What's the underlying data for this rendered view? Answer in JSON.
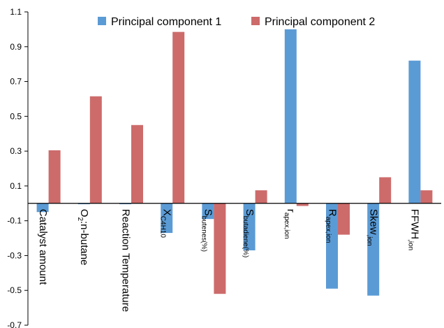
{
  "chart_data": {
    "type": "bar",
    "title": "",
    "xlabel": "",
    "ylabel": "",
    "ylim": [
      -0.7,
      1.1
    ],
    "yticks": [
      "1.1",
      "0.9",
      "0.7",
      "0.5",
      "0.3",
      "0.1",
      "-0.1",
      "-0.3",
      "-0.5",
      "-0.7"
    ],
    "grid": false,
    "legend_position": "top",
    "categories": [
      {
        "main": "Catalyst amount"
      },
      {
        "main": "O",
        "sub": "2",
        "rest": ":n-butane"
      },
      {
        "main": "Reaction Temperature"
      },
      {
        "main": "X",
        "sub": "C4H10"
      },
      {
        "main": "S",
        "sub": "butenes(%)"
      },
      {
        "main": "S",
        "sub": "butadiene(%)"
      },
      {
        "main": "r",
        "sub": "apex,ion"
      },
      {
        "main": "R",
        "sub": "apex,ion"
      },
      {
        "main": "Skew",
        "sub": ",ion"
      },
      {
        "main": "FFWH",
        "sub": ",ion"
      }
    ],
    "series": [
      {
        "name": "Principal component 1",
        "color": "#5b9bd5",
        "values": [
          -0.05,
          -0.005,
          -0.005,
          -0.17,
          -0.09,
          -0.27,
          1.0,
          -0.49,
          -0.53,
          0.82
        ]
      },
      {
        "name": "Principal component 2",
        "color": "#cd6b6b",
        "values": [
          0.305,
          0.615,
          0.45,
          0.985,
          -0.52,
          0.075,
          -0.015,
          -0.18,
          0.15,
          0.075
        ]
      }
    ]
  }
}
